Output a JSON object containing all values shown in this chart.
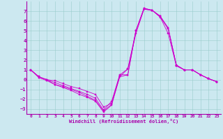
{
  "xlabel": "Windchill (Refroidissement éolien,°C)",
  "background_color": "#cce8f0",
  "grid_color": "#99cccc",
  "line_color": "#cc00cc",
  "xlim": [
    -0.5,
    23.5
  ],
  "ylim": [
    -3.5,
    8.0
  ],
  "yticks": [
    -3,
    -2,
    -1,
    0,
    1,
    2,
    3,
    4,
    5,
    6,
    7
  ],
  "xticks": [
    0,
    1,
    2,
    3,
    4,
    5,
    6,
    7,
    8,
    9,
    10,
    11,
    12,
    13,
    14,
    15,
    16,
    17,
    18,
    19,
    20,
    21,
    22,
    23
  ],
  "x": [
    0,
    1,
    2,
    3,
    4,
    5,
    6,
    7,
    8,
    9,
    10,
    11,
    12,
    13,
    14,
    15,
    16,
    17,
    18,
    19,
    20,
    21,
    22,
    23
  ],
  "lines": [
    [
      1.0,
      0.3,
      0.0,
      -0.1,
      -0.4,
      -0.7,
      -0.9,
      -1.2,
      -1.5,
      -2.8,
      -2.4,
      0.3,
      1.1,
      4.7,
      7.2,
      7.1,
      6.4,
      4.7,
      1.4,
      1.0,
      1.0,
      0.5,
      0.1,
      -0.2
    ],
    [
      1.0,
      0.3,
      0.0,
      -0.3,
      -0.6,
      -0.9,
      -1.2,
      -1.5,
      -1.9,
      -3.1,
      -2.2,
      0.5,
      1.1,
      5.0,
      7.2,
      7.1,
      6.4,
      5.2,
      1.5,
      1.0,
      1.0,
      0.5,
      0.1,
      -0.2
    ],
    [
      1.0,
      0.3,
      0.0,
      -0.5,
      -0.7,
      -1.0,
      -1.3,
      -1.7,
      -2.1,
      -3.2,
      -2.5,
      0.5,
      0.5,
      5.0,
      7.3,
      7.1,
      6.5,
      5.2,
      1.5,
      1.0,
      1.0,
      0.5,
      0.1,
      -0.2
    ],
    [
      1.0,
      0.2,
      -0.1,
      -0.5,
      -0.8,
      -1.1,
      -1.5,
      -1.8,
      -2.2,
      -3.3,
      -2.6,
      0.3,
      0.5,
      5.0,
      7.3,
      7.1,
      6.5,
      5.3,
      1.5,
      1.0,
      1.0,
      0.5,
      0.1,
      -0.2
    ]
  ]
}
